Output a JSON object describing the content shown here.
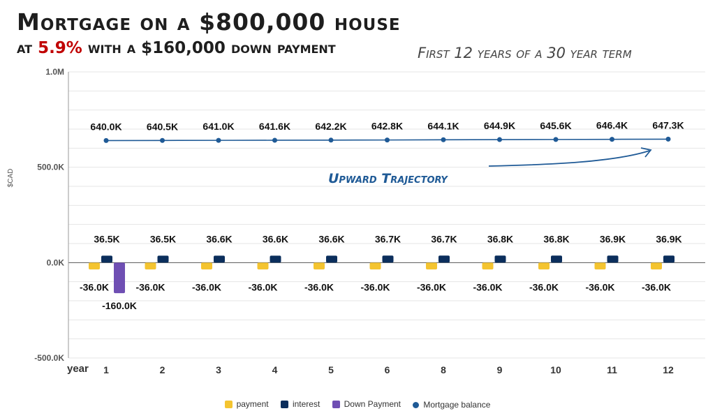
{
  "header": {
    "title": "Mortgage on a $800,000 house",
    "subtitle_pre": "at ",
    "subtitle_rate": "5.9%",
    "subtitle_post": " with a $160,000 down payment",
    "note": "First 12 years of a 30 year term"
  },
  "colors": {
    "payment": "#f4c430",
    "interest": "#0b2e5c",
    "down_payment": "#6f4fb3",
    "mortgage_balance": "#1f5a96"
  },
  "chart_data": {
    "type": "bar",
    "title": "Mortgage on a $800,000 house",
    "xlabel": "year",
    "ylabel": "$CAD",
    "ylim": [
      -500000,
      1000000
    ],
    "y_ticks": [
      {
        "value": 1000000,
        "label": "1.0M"
      },
      {
        "value": 500000,
        "label": "500.0K"
      },
      {
        "value": 0,
        "label": "0.0K"
      },
      {
        "value": -500000,
        "label": "-500.0K"
      }
    ],
    "categories": [
      "1",
      "2",
      "3",
      "4",
      "5",
      "6",
      "8",
      "9",
      "10",
      "11",
      "12"
    ],
    "series": [
      {
        "name": "payment",
        "type": "bar",
        "values": [
          -36000,
          -36000,
          -36000,
          -36000,
          -36000,
          -36000,
          -36000,
          -36000,
          -36000,
          -36000,
          -36000
        ],
        "labels": [
          "-36.0K",
          "-36.0K",
          "-36.0K",
          "-36.0K",
          "-36.0K",
          "-36.0K",
          "-36.0K",
          "-36.0K",
          "-36.0K",
          "-36.0K",
          "-36.0K"
        ]
      },
      {
        "name": "interest",
        "type": "bar",
        "values": [
          36500,
          36500,
          36600,
          36600,
          36600,
          36700,
          36700,
          36800,
          36800,
          36900,
          36900
        ],
        "labels": [
          "36.5K",
          "36.5K",
          "36.6K",
          "36.6K",
          "36.6K",
          "36.7K",
          "36.7K",
          "36.8K",
          "36.8K",
          "36.9K",
          "36.9K"
        ]
      },
      {
        "name": "Down Payment",
        "type": "bar",
        "values": [
          -160000,
          null,
          null,
          null,
          null,
          null,
          null,
          null,
          null,
          null,
          null
        ],
        "labels": [
          "-160.0K",
          null,
          null,
          null,
          null,
          null,
          null,
          null,
          null,
          null,
          null
        ]
      },
      {
        "name": "Mortgage balance",
        "type": "line",
        "values": [
          640000,
          640500,
          641000,
          641600,
          642200,
          642800,
          644100,
          644900,
          645600,
          646400,
          647300
        ],
        "labels": [
          "640.0K",
          "640.5K",
          "641.0K",
          "641.6K",
          "642.2K",
          "642.8K",
          "644.1K",
          "644.9K",
          "645.6K",
          "646.4K",
          "647.3K"
        ]
      }
    ],
    "annotation": "Upward Trajectory",
    "grid": true,
    "legend_position": "bottom"
  }
}
